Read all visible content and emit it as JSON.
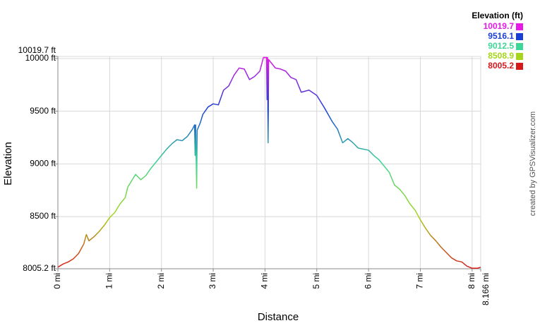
{
  "chart_data": {
    "type": "line",
    "x_label": "Distance",
    "y_label": "Elevation",
    "credit": "created by GPSVisualizer.com",
    "legend_title": "Elevation (ft)",
    "color_scale": [
      {
        "value": 10019.7,
        "color": "#e619e6"
      },
      {
        "value": 9516.1,
        "color": "#1a3fd6"
      },
      {
        "value": 9012.5,
        "color": "#3cd696"
      },
      {
        "value": 8508.9,
        "color": "#a6d61a"
      },
      {
        "value": 8005.2,
        "color": "#d61a1a"
      }
    ],
    "xlim": [
      0,
      8.166
    ],
    "ylim": [
      8005.2,
      10019.7
    ],
    "xticks": [
      {
        "value": 0,
        "label": "0 mi"
      },
      {
        "value": 1,
        "label": "1 mi"
      },
      {
        "value": 2,
        "label": "2 mi"
      },
      {
        "value": 3,
        "label": "3 mi"
      },
      {
        "value": 4,
        "label": "4 mi"
      },
      {
        "value": 5,
        "label": "5 mi"
      },
      {
        "value": 6,
        "label": "6 mi"
      },
      {
        "value": 7,
        "label": "7 mi"
      },
      {
        "value": 8,
        "label": "8 mi"
      },
      {
        "value": 8.166,
        "label": "8.166 mi"
      }
    ],
    "yticks": [
      {
        "value": 8005.2,
        "label": "8005.2 ft"
      },
      {
        "value": 8500,
        "label": "8500 ft"
      },
      {
        "value": 9000,
        "label": "9000 ft"
      },
      {
        "value": 9500,
        "label": "9500 ft"
      },
      {
        "value": 10000,
        "label": "10000 ft"
      },
      {
        "value": 10019.7,
        "label": "10019.7 ft"
      }
    ],
    "grid": true,
    "x": [
      0,
      0.1,
      0.2,
      0.3,
      0.4,
      0.5,
      0.55,
      0.6,
      0.7,
      0.8,
      0.9,
      1.0,
      1.1,
      1.2,
      1.3,
      1.35,
      1.45,
      1.5,
      1.6,
      1.7,
      1.8,
      1.9,
      2.0,
      2.1,
      2.2,
      2.3,
      2.4,
      2.5,
      2.6,
      2.64,
      2.65,
      2.66,
      2.68,
      2.69,
      2.75,
      2.8,
      2.9,
      3.0,
      3.1,
      3.2,
      3.3,
      3.4,
      3.5,
      3.6,
      3.7,
      3.8,
      3.9,
      3.97,
      4.03,
      4.04,
      4.05,
      4.06,
      4.07,
      4.2,
      4.3,
      4.4,
      4.5,
      4.6,
      4.7,
      4.85,
      5.0,
      5.15,
      5.3,
      5.4,
      5.5,
      5.6,
      5.7,
      5.8,
      6.0,
      6.1,
      6.2,
      6.3,
      6.4,
      6.5,
      6.6,
      6.7,
      6.8,
      6.9,
      7.0,
      7.1,
      7.2,
      7.3,
      7.4,
      7.5,
      7.6,
      7.7,
      7.8,
      7.9,
      8.0,
      8.1,
      8.166
    ],
    "values": [
      8020,
      8050,
      8070,
      8100,
      8150,
      8240,
      8330,
      8270,
      8310,
      8360,
      8420,
      8490,
      8540,
      8620,
      8680,
      8780,
      8860,
      8900,
      8850,
      8890,
      8960,
      9020,
      9080,
      9140,
      9190,
      9230,
      9220,
      9260,
      9330,
      9370,
      9080,
      9370,
      8770,
      9320,
      9390,
      9470,
      9540,
      9570,
      9560,
      9700,
      9740,
      9840,
      9910,
      9900,
      9800,
      9830,
      9880,
      10010,
      10010,
      9610,
      10010,
      9200,
      9990,
      9910,
      9900,
      9880,
      9820,
      9800,
      9680,
      9700,
      9650,
      9530,
      9400,
      9330,
      9200,
      9240,
      9200,
      9150,
      9130,
      9080,
      9040,
      8980,
      8920,
      8800,
      8760,
      8700,
      8620,
      8560,
      8470,
      8390,
      8320,
      8270,
      8210,
      8160,
      8110,
      8080,
      8070,
      8030,
      8010,
      8010,
      8020
    ]
  }
}
